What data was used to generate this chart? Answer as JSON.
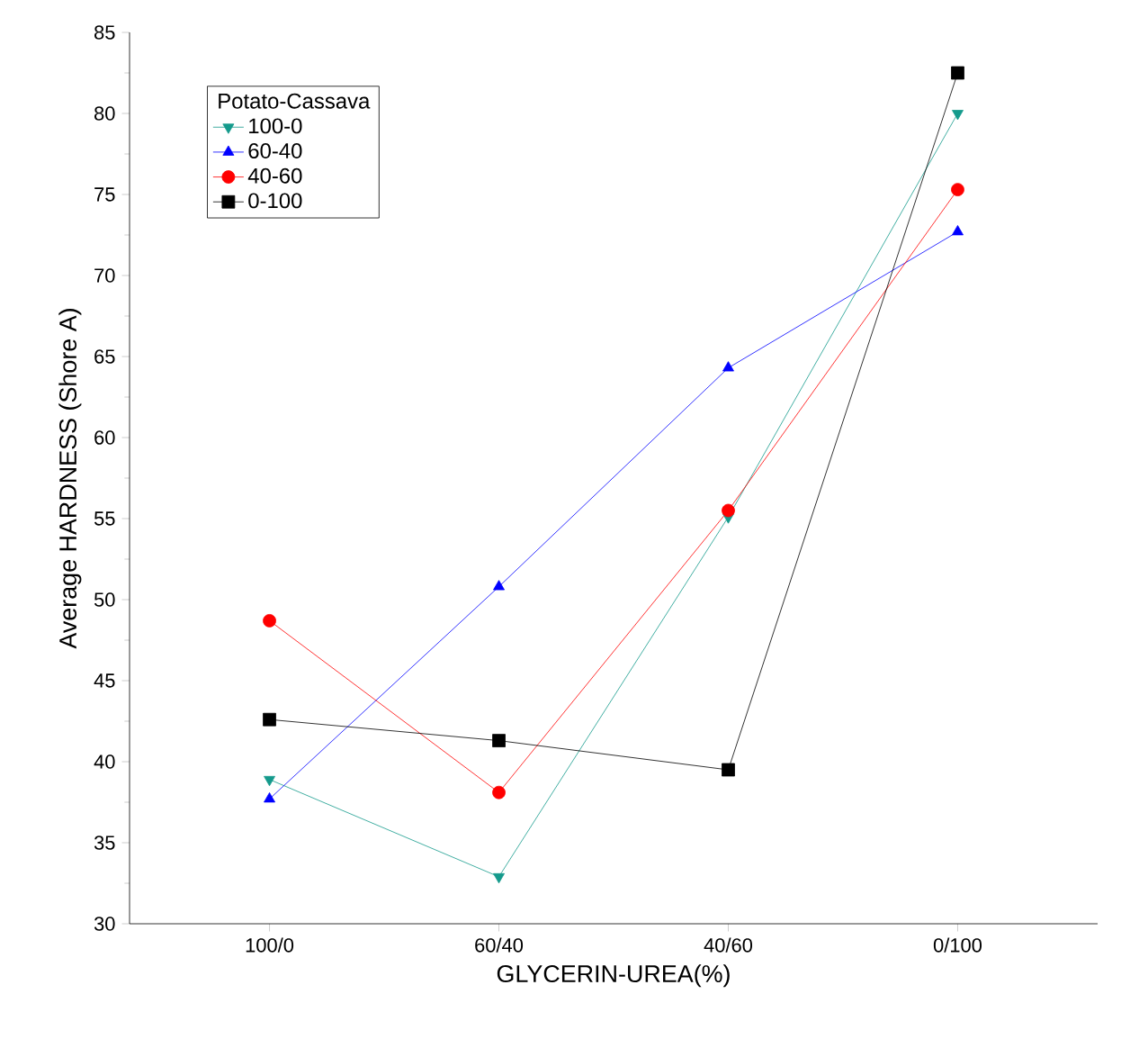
{
  "chart_data": {
    "type": "line",
    "xlabel": "GLYCERIN-UREA(%)",
    "ylabel": "Average HARDNESS (Shore A)",
    "legend_title": "Potato-Cassava",
    "legend": "top left",
    "grid": false,
    "categories": [
      "100/0",
      "60/40",
      "40/60",
      "0/100"
    ],
    "ylim": [
      30,
      85
    ],
    "yticks": [
      30,
      35,
      40,
      45,
      50,
      55,
      60,
      65,
      70,
      75,
      80,
      85
    ],
    "series": [
      {
        "name": "100-0",
        "color": "#149a8c",
        "marker": "triangle-down",
        "values": [
          38.9,
          32.9,
          55.1,
          80.0
        ]
      },
      {
        "name": "60-40",
        "color": "#0000ff",
        "marker": "triangle",
        "values": [
          37.7,
          50.8,
          64.3,
          72.7
        ]
      },
      {
        "name": "40-60",
        "color": "#ff0000",
        "marker": "circle",
        "values": [
          48.7,
          38.1,
          55.5,
          75.3
        ]
      },
      {
        "name": "0-100",
        "color": "#000000",
        "marker": "square",
        "values": [
          42.6,
          41.3,
          39.5,
          82.5
        ]
      }
    ]
  }
}
